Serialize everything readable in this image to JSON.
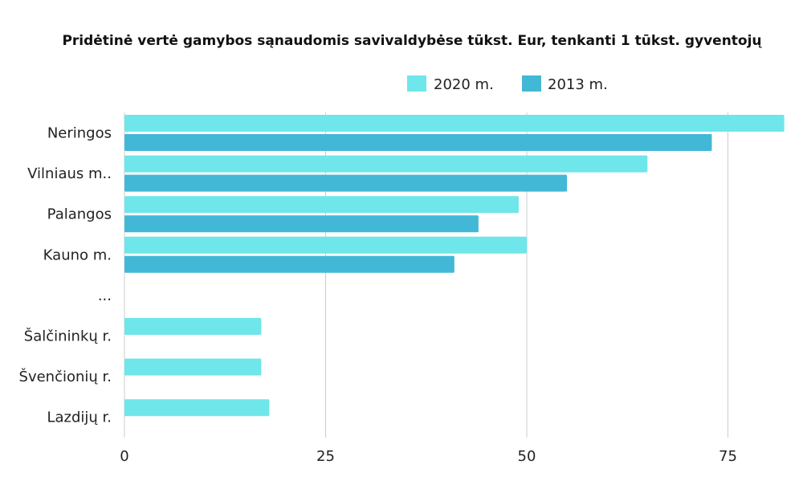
{
  "chart_data": {
    "type": "bar",
    "orientation": "horizontal",
    "title": "Pridėtinė vertė gamybos sąnaudomis savivaldybėse tūkst. Eur, tenkanti 1 tūkst. gyventojų",
    "xlabel": "",
    "ylabel": "",
    "xlim": [
      0,
      82
    ],
    "x_ticks": [
      0,
      25,
      50,
      75
    ],
    "grid": "vertical",
    "legend_position": "top-right",
    "categories": [
      "Neringos",
      "Vilniaus m..",
      "Palangos",
      "Kauno m.",
      "...",
      "Šalčininkų r.",
      "Švenčionių r.",
      "Lazdijų r."
    ],
    "series": [
      {
        "name": "2020 m.",
        "color": "#6ee6ea",
        "values": [
          82,
          65,
          49,
          50,
          null,
          17,
          17,
          18
        ]
      },
      {
        "name": "2013 m.",
        "color": "#42b8d6",
        "values": [
          73,
          55,
          44,
          41,
          null,
          null,
          null,
          null
        ]
      }
    ]
  }
}
